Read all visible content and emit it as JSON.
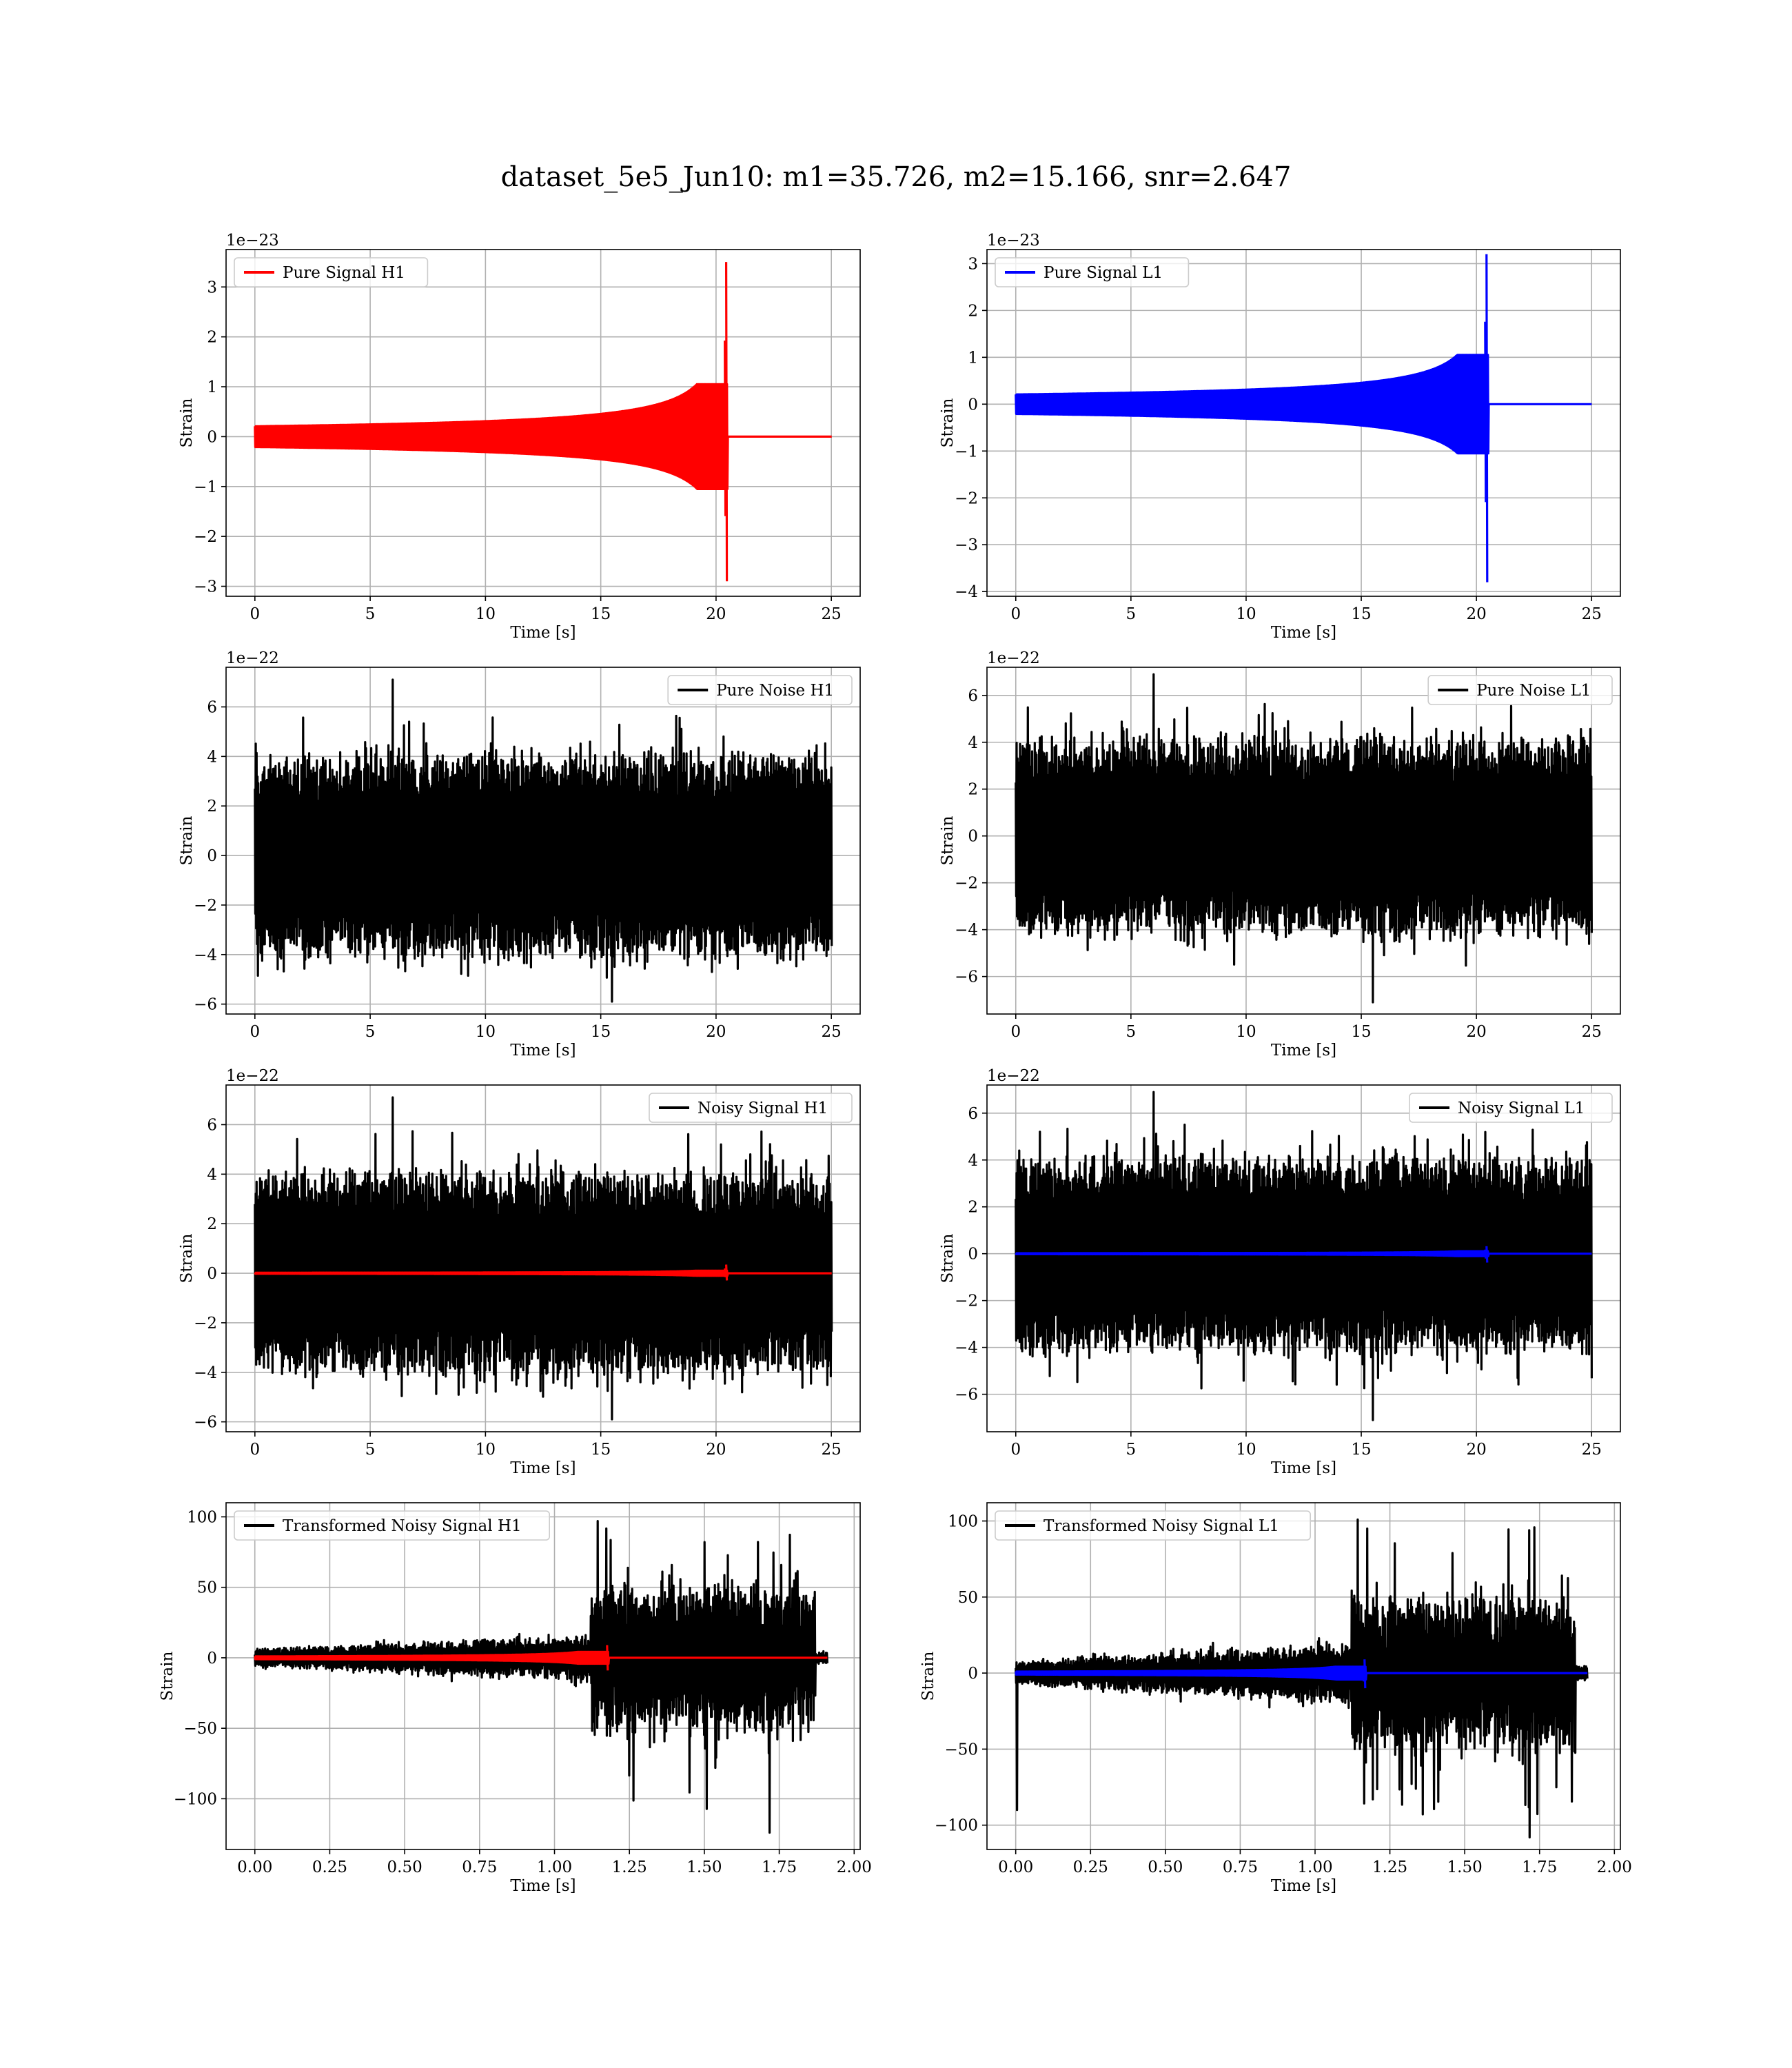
{
  "figure": {
    "title": "dataset_5e5_Jun10: m1=35.726, m2=15.166, snr=2.647"
  },
  "colors": {
    "h1": "#ff0000",
    "l1": "#0000ff",
    "noise": "#000000"
  },
  "chart_data": [
    {
      "type": "line",
      "id": "pure-signal-h1",
      "legend": "Pure Signal H1",
      "legend_loc": "upper-left",
      "xlabel": "Time [s]",
      "ylabel": "Strain",
      "offset_text": "1e−23",
      "xlim": [
        -1.25,
        26.25
      ],
      "ylim": [
        -3.2,
        3.75
      ],
      "xticks": [
        0,
        5,
        10,
        15,
        20,
        25
      ],
      "xtick_labels": [
        "0",
        "5",
        "10",
        "15",
        "20",
        "25"
      ],
      "yticks": [
        -3,
        -2,
        -1,
        0,
        1,
        2,
        3
      ],
      "ytick_labels": [
        "−3",
        "−2",
        "−1",
        "0",
        "1",
        "2",
        "3"
      ],
      "grid": true,
      "series": [
        {
          "kind": "chirp",
          "color": "#ff0000",
          "x_start": 0,
          "x_end": 25,
          "merger_time": 20.5,
          "peak_pos": 3.5,
          "peak_neg": -2.9,
          "pre_merger_amp": 1.0
        }
      ]
    },
    {
      "type": "line",
      "id": "pure-signal-l1",
      "legend": "Pure Signal L1",
      "legend_loc": "upper-left",
      "xlabel": "Time [s]",
      "ylabel": "Strain",
      "offset_text": "1e−23",
      "xlim": [
        -1.25,
        26.25
      ],
      "ylim": [
        -4.1,
        3.3
      ],
      "xticks": [
        0,
        5,
        10,
        15,
        20,
        25
      ],
      "xtick_labels": [
        "0",
        "5",
        "10",
        "15",
        "20",
        "25"
      ],
      "yticks": [
        -4,
        -3,
        -2,
        -1,
        0,
        1,
        2,
        3
      ],
      "ytick_labels": [
        "−4",
        "−3",
        "−2",
        "−1",
        "0",
        "1",
        "2",
        "3"
      ],
      "grid": true,
      "series": [
        {
          "kind": "chirp",
          "color": "#0000ff",
          "x_start": 0,
          "x_end": 25,
          "merger_time": 20.5,
          "peak_pos": 3.2,
          "peak_neg": -3.8,
          "pre_merger_amp": 1.0
        }
      ]
    },
    {
      "type": "line",
      "id": "pure-noise-h1",
      "legend": "Pure Noise H1",
      "legend_loc": "upper-right",
      "xlabel": "Time [s]",
      "ylabel": "Strain",
      "offset_text": "1e−22",
      "xlim": [
        -1.25,
        26.25
      ],
      "ylim": [
        -6.4,
        7.6
      ],
      "xticks": [
        0,
        5,
        10,
        15,
        20,
        25
      ],
      "xtick_labels": [
        "0",
        "5",
        "10",
        "15",
        "20",
        "25"
      ],
      "yticks": [
        -6,
        -4,
        -2,
        0,
        2,
        4,
        6
      ],
      "ytick_labels": [
        "−6",
        "−4",
        "−2",
        "0",
        "2",
        "4",
        "6"
      ],
      "grid": true,
      "series": [
        {
          "kind": "noise",
          "color": "#000000",
          "x_start": 0,
          "x_end": 25,
          "band": 3.7,
          "spike_max": 7.1,
          "spike_min": -5.9
        }
      ]
    },
    {
      "type": "line",
      "id": "pure-noise-l1",
      "legend": "Pure Noise L1",
      "legend_loc": "upper-right",
      "xlabel": "Time [s]",
      "ylabel": "Strain",
      "offset_text": "1e−22",
      "xlim": [
        -1.25,
        26.25
      ],
      "ylim": [
        -7.6,
        7.2
      ],
      "xticks": [
        0,
        5,
        10,
        15,
        20,
        25
      ],
      "xtick_labels": [
        "0",
        "5",
        "10",
        "15",
        "20",
        "25"
      ],
      "yticks": [
        -6,
        -4,
        -2,
        0,
        2,
        4,
        6
      ],
      "ytick_labels": [
        "−6",
        "−4",
        "−2",
        "0",
        "2",
        "4",
        "6"
      ],
      "grid": true,
      "series": [
        {
          "kind": "noise",
          "color": "#000000",
          "x_start": 0,
          "x_end": 25,
          "band": 3.8,
          "spike_max": 6.9,
          "spike_min": -7.1
        }
      ]
    },
    {
      "type": "line",
      "id": "noisy-signal-h1",
      "legend": "Noisy Signal H1",
      "legend_loc": "upper-right",
      "xlabel": "Time [s]",
      "ylabel": "Strain",
      "offset_text": "1e−22",
      "xlim": [
        -1.25,
        26.25
      ],
      "ylim": [
        -6.4,
        7.6
      ],
      "xticks": [
        0,
        5,
        10,
        15,
        20,
        25
      ],
      "xtick_labels": [
        "0",
        "5",
        "10",
        "15",
        "20",
        "25"
      ],
      "yticks": [
        -6,
        -4,
        -2,
        0,
        2,
        4,
        6
      ],
      "ytick_labels": [
        "−6",
        "−4",
        "−2",
        "0",
        "2",
        "4",
        "6"
      ],
      "grid": true,
      "series": [
        {
          "kind": "noise",
          "color": "#000000",
          "x_start": 0,
          "x_end": 25,
          "band": 3.7,
          "spike_max": 7.1,
          "spike_min": -5.9
        },
        {
          "kind": "chirp",
          "color": "#ff0000",
          "x_start": 0,
          "x_end": 25,
          "merger_time": 20.5,
          "peak_pos": 0.35,
          "peak_neg": -0.29,
          "pre_merger_amp": 0.1
        }
      ]
    },
    {
      "type": "line",
      "id": "noisy-signal-l1",
      "legend": "Noisy Signal L1",
      "legend_loc": "upper-right",
      "xlabel": "Time [s]",
      "ylabel": "Strain",
      "offset_text": "1e−22",
      "xlim": [
        -1.25,
        26.25
      ],
      "ylim": [
        -7.6,
        7.2
      ],
      "xticks": [
        0,
        5,
        10,
        15,
        20,
        25
      ],
      "xtick_labels": [
        "0",
        "5",
        "10",
        "15",
        "20",
        "25"
      ],
      "yticks": [
        -6,
        -4,
        -2,
        0,
        2,
        4,
        6
      ],
      "ytick_labels": [
        "−6",
        "−4",
        "−2",
        "0",
        "2",
        "4",
        "6"
      ],
      "grid": true,
      "series": [
        {
          "kind": "noise",
          "color": "#000000",
          "x_start": 0,
          "x_end": 25,
          "band": 3.8,
          "spike_max": 6.9,
          "spike_min": -7.1
        },
        {
          "kind": "chirp",
          "color": "#0000ff",
          "x_start": 0,
          "x_end": 25,
          "merger_time": 20.5,
          "peak_pos": 0.32,
          "peak_neg": -0.38,
          "pre_merger_amp": 0.1
        }
      ]
    },
    {
      "type": "line",
      "id": "transformed-noisy-signal-h1",
      "legend": "Transformed Noisy Signal H1",
      "legend_loc": "upper-left",
      "xlabel": "Time [s]",
      "ylabel": "Strain",
      "offset_text": "",
      "xlim": [
        -0.096,
        2.02
      ],
      "ylim": [
        -136,
        110
      ],
      "xticks": [
        0,
        0.25,
        0.5,
        0.75,
        1.0,
        1.25,
        1.5,
        1.75,
        2.0
      ],
      "xtick_labels": [
        "0.00",
        "0.25",
        "0.50",
        "0.75",
        "1.00",
        "1.25",
        "1.50",
        "1.75",
        "2.00"
      ],
      "yticks": [
        -100,
        -50,
        0,
        50,
        100
      ],
      "ytick_labels": [
        "−100",
        "−50",
        "0",
        "50",
        "100"
      ],
      "grid": true,
      "series": [
        {
          "kind": "whitened",
          "color": "#000000",
          "x_start": 0,
          "x_end": 1.91,
          "pre_band": 5,
          "jump_time": 1.12,
          "post_band": 42,
          "taper_end": 1.87,
          "spike_max": 97,
          "spike_min": -124
        },
        {
          "kind": "chirp",
          "color": "#ff0000",
          "x_start": 0,
          "x_end": 1.91,
          "merger_time": 1.18,
          "peak_pos": 9,
          "peak_neg": -9,
          "pre_merger_amp": 4
        }
      ]
    },
    {
      "type": "line",
      "id": "transformed-noisy-signal-l1",
      "legend": "Transformed Noisy Signal L1",
      "legend_loc": "upper-left",
      "xlabel": "Time [s]",
      "ylabel": "Strain",
      "offset_text": "",
      "xlim": [
        -0.096,
        2.02
      ],
      "ylim": [
        -116,
        112
      ],
      "xticks": [
        0,
        0.25,
        0.5,
        0.75,
        1.0,
        1.25,
        1.5,
        1.75,
        2.0
      ],
      "xtick_labels": [
        "0.00",
        "0.25",
        "0.50",
        "0.75",
        "1.00",
        "1.25",
        "1.50",
        "1.75",
        "2.00"
      ],
      "yticks": [
        -100,
        -50,
        0,
        50,
        100
      ],
      "ytick_labels": [
        "−100",
        "−50",
        "0",
        "50",
        "100"
      ],
      "grid": true,
      "series": [
        {
          "kind": "whitened",
          "color": "#000000",
          "x_start": 0,
          "x_end": 1.91,
          "pre_band": 6,
          "jump_time": 1.12,
          "post_band": 40,
          "taper_end": 1.87,
          "spike_max": 101,
          "spike_min": -108,
          "start_spike": -90
        },
        {
          "kind": "chirp",
          "color": "#0000ff",
          "x_start": 0,
          "x_end": 1.91,
          "merger_time": 1.17,
          "peak_pos": 9,
          "peak_neg": -10,
          "pre_merger_amp": 4
        }
      ]
    }
  ]
}
